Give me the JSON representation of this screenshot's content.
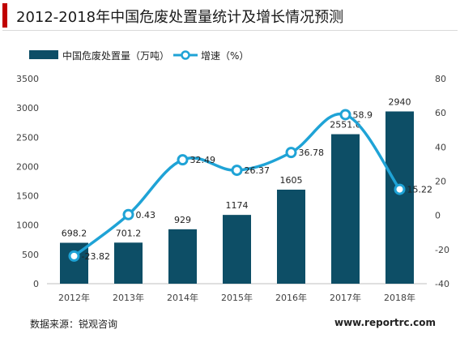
{
  "title": "2012-2018年中国危废处置量统计及增长情况预测",
  "footer": {
    "source": "数据来源：锐观咨询",
    "url": "www.reportrc.com"
  },
  "colors": {
    "bar": "#0d4e66",
    "line": "#1fa3d6",
    "accent": "#c00000"
  },
  "chart_data": {
    "type": "bar",
    "categories": [
      "2012年",
      "2013年",
      "2014年",
      "2015年",
      "2016年",
      "2017年",
      "2018年"
    ],
    "series": [
      {
        "name": "中国危废处置量（万吨）",
        "type": "bar",
        "axis": "left",
        "values": [
          698.2,
          701.2,
          929,
          1174,
          1605,
          2551.6,
          2940
        ],
        "labels": [
          "698.2",
          "701.2",
          "929",
          "1174",
          "1605",
          "2551.6",
          "2940"
        ]
      },
      {
        "name": "增速（%）",
        "type": "line",
        "axis": "right",
        "values": [
          -23.82,
          0.43,
          32.49,
          26.37,
          36.78,
          58.9,
          15.22
        ],
        "labels": [
          "-23.82",
          "0.43",
          "32.49",
          "26.37",
          "36.78",
          "58.9",
          "15.22"
        ]
      }
    ],
    "y_left": {
      "ylim": [
        0,
        3500
      ],
      "ticks": [
        "0",
        "500",
        "1000",
        "1500",
        "2000",
        "2500",
        "3000",
        "3500"
      ]
    },
    "y_right": {
      "ylim": [
        -40,
        80
      ],
      "ticks": [
        "-40",
        "-20",
        "0",
        "20",
        "40",
        "60",
        "80"
      ]
    },
    "legend": "top-left",
    "grid": false
  }
}
